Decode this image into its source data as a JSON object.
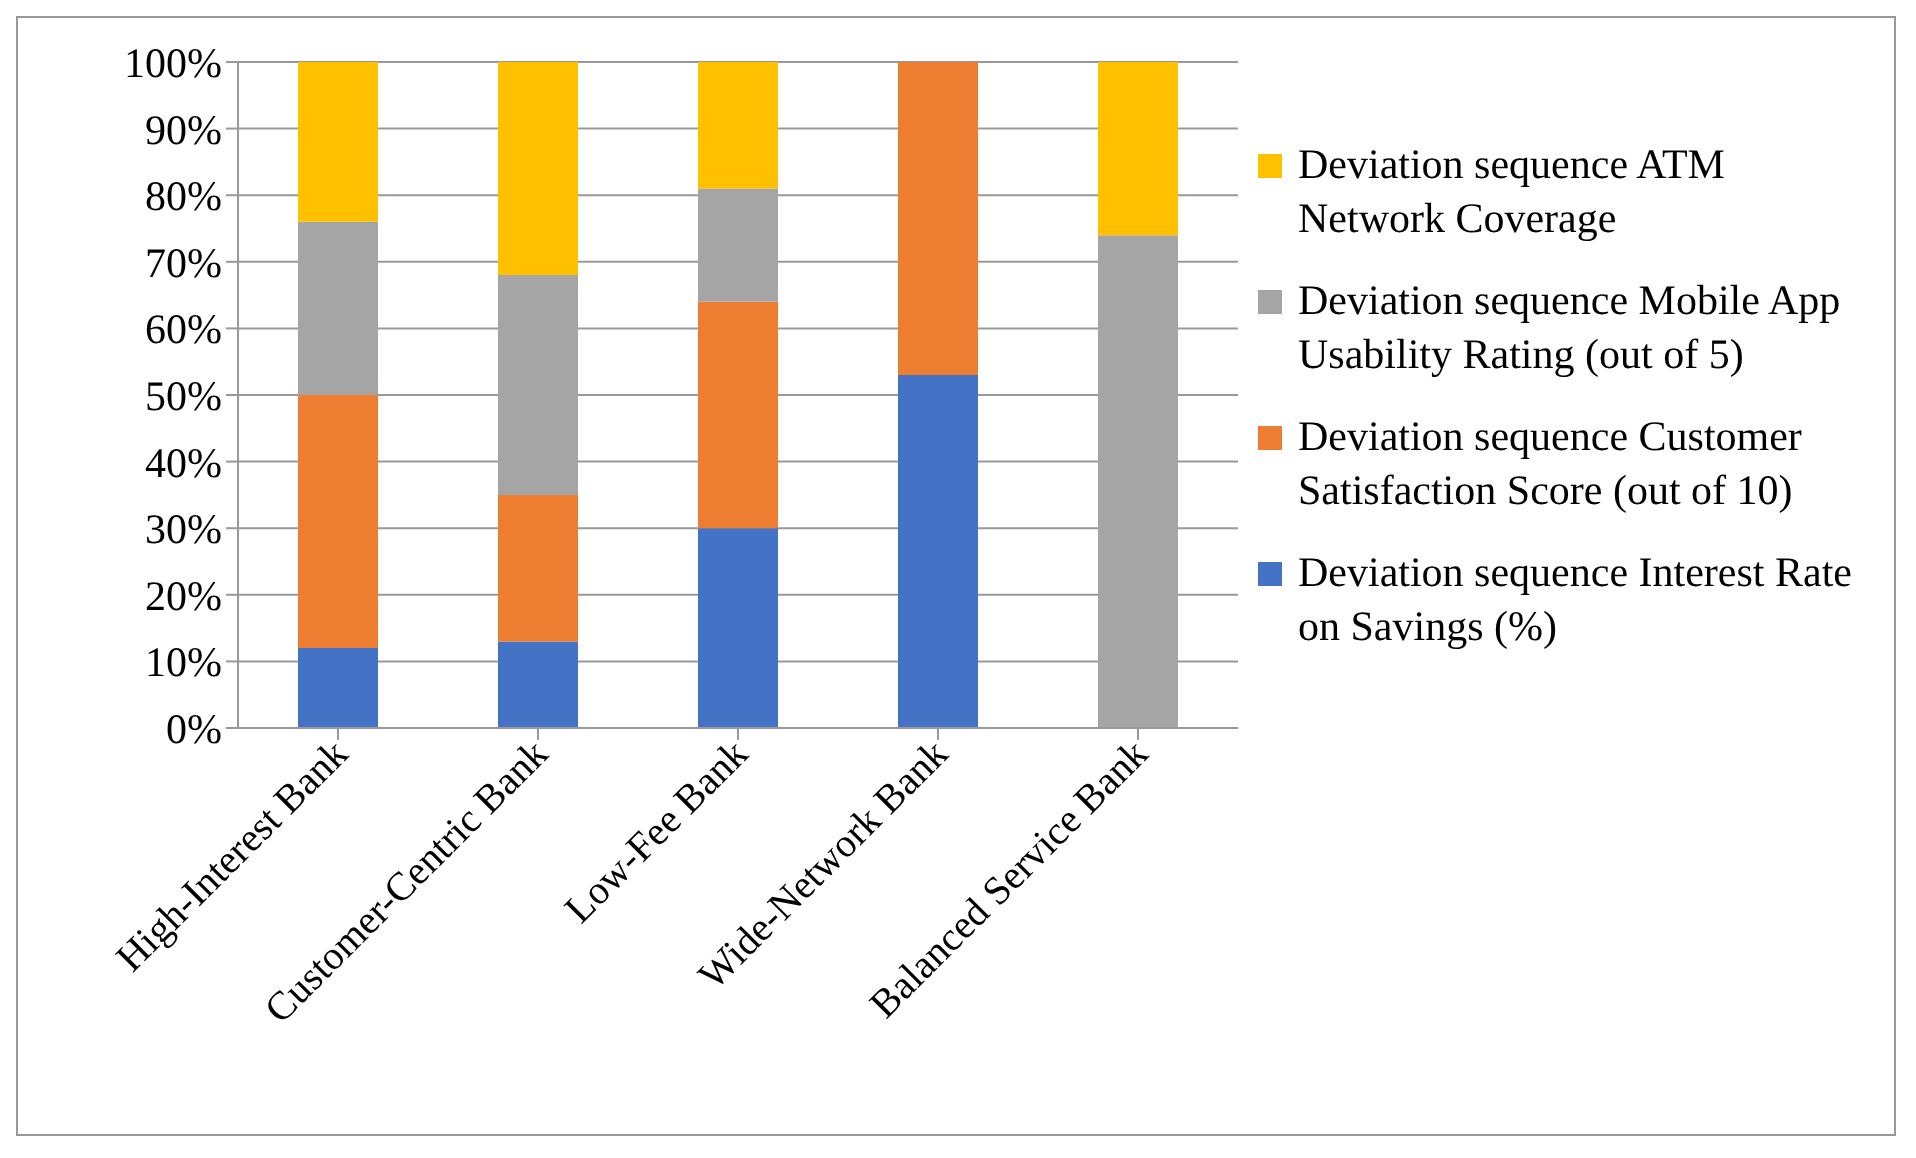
{
  "chart_data": {
    "type": "bar",
    "stacked": true,
    "categories": [
      "High-Interest Bank",
      "Customer-Centric Bank",
      "Low-Fee Bank",
      "Wide-Network Bank",
      "Balanced Service Bank"
    ],
    "series": [
      {
        "name": "Deviation sequence Interest Rate on Savings (%)",
        "color": "#4472c4",
        "values": [
          12,
          13,
          30,
          53,
          0
        ]
      },
      {
        "name": "Deviation sequence Customer Satisfaction Score (out of 10)",
        "color": "#ed7d31",
        "values": [
          38,
          22,
          34,
          47,
          0
        ]
      },
      {
        "name": "Deviation sequence Mobile App Usability Rating (out of 5)",
        "color": "#a5a5a5",
        "values": [
          26,
          33,
          17,
          0,
          74
        ]
      },
      {
        "name": "Deviation sequence ATM Network Coverage",
        "color": "#ffc000",
        "values": [
          24,
          32,
          19,
          0,
          26
        ]
      }
    ],
    "ylim": [
      0,
      100
    ],
    "yticks": [
      {
        "value": 0,
        "label": "0%"
      },
      {
        "value": 10,
        "label": "10%"
      },
      {
        "value": 20,
        "label": "20%"
      },
      {
        "value": 30,
        "label": "30%"
      },
      {
        "value": 40,
        "label": "40%"
      },
      {
        "value": 50,
        "label": "50%"
      },
      {
        "value": 60,
        "label": "60%"
      },
      {
        "value": 70,
        "label": "70%"
      },
      {
        "value": 80,
        "label": "80%"
      },
      {
        "value": 90,
        "label": "90%"
      },
      {
        "value": 100,
        "label": "100%"
      }
    ],
    "grid": "y",
    "legend": "right"
  }
}
